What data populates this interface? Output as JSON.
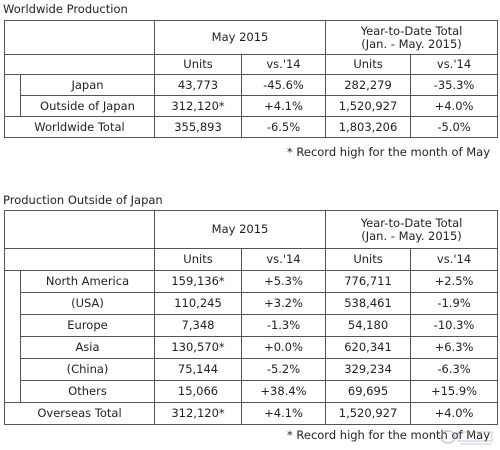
{
  "table1": {
    "title": "Worldwide Production",
    "period": "May 2015",
    "ytd_line1": "Year-to-Date Total",
    "ytd_line2": "(Jan. - May. 2015)",
    "col_units": "Units",
    "col_vs": "vs.'14",
    "rows": [
      {
        "label": "Japan",
        "units": "43,773",
        "vs": "-45.6%",
        "ytd_units": "282,279",
        "ytd_vs": "-35.3%"
      },
      {
        "label": "Outside of Japan",
        "units": "312,120*",
        "vs": "+4.1%",
        "ytd_units": "1,520,927",
        "ytd_vs": "+4.0%"
      }
    ],
    "total": {
      "label": "Worldwide Total",
      "units": "355,893",
      "vs": "-6.5%",
      "ytd_units": "1,803,206",
      "ytd_vs": "-5.0%"
    },
    "note": "* Record high for the month of May"
  },
  "table2": {
    "title": "Production Outside of Japan",
    "period": "May 2015",
    "ytd_line1": "Year-to-Date Total",
    "ytd_line2": "(Jan. - May. 2015)",
    "col_units": "Units",
    "col_vs": "vs.'14",
    "rows": [
      {
        "label": "North America",
        "units": "159,136*",
        "vs": "+5.3%",
        "ytd_units": "776,711",
        "ytd_vs": "+2.5%"
      },
      {
        "label": "(USA)",
        "units": "110,245",
        "vs": "+3.2%",
        "ytd_units": "538,461",
        "ytd_vs": "-1.9%"
      },
      {
        "label": "Europe",
        "units": "7,348",
        "vs": "-1.3%",
        "ytd_units": "54,180",
        "ytd_vs": "-10.3%"
      },
      {
        "label": "Asia",
        "units": "130,570*",
        "vs": "+0.0%",
        "ytd_units": "620,341",
        "ytd_vs": "+6.3%"
      },
      {
        "label": "(China)",
        "units": "75,144",
        "vs": "-5.2%",
        "ytd_units": "329,234",
        "ytd_vs": "-6.3%"
      },
      {
        "label": "Others",
        "units": "15,066",
        "vs": "+38.4%",
        "ytd_units": "69,695",
        "ytd_vs": "+15.9%"
      }
    ],
    "total": {
      "label": "Overseas Total",
      "units": "312,120*",
      "vs": "+4.1%",
      "ytd_units": "1,520,927",
      "ytd_vs": "+4.0%"
    },
    "note": "* Record high for the month of May"
  }
}
